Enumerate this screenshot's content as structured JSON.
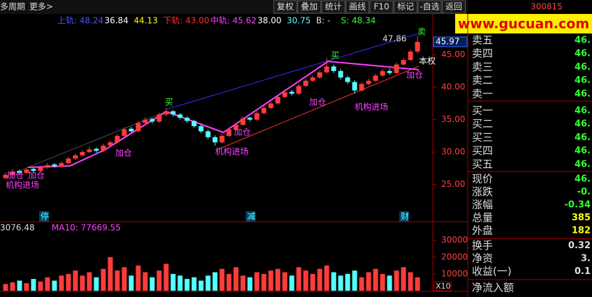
{
  "toolbar": {
    "left": [
      "多周期",
      "更多>"
    ],
    "buttons": [
      "复权",
      "叠加",
      "统计",
      "画线",
      "F10",
      "标记",
      "-自选",
      "返回"
    ]
  },
  "watermark": "www.gucuan.com",
  "stock_code": "300815",
  "indicator_line": [
    "上轨: 48.24",
    "36.84",
    "44.13",
    "下轨: 43.00",
    "中轨: 45.62",
    "38.00",
    "30.75",
    "B: -",
    "S: 48.34"
  ],
  "volume_line": [
    "3076.48",
    "MA10: 77669.55"
  ],
  "annotations": {
    "buy": "买",
    "sell": "卖",
    "add": "加仓",
    "inst": "机构进场",
    "high": "47.86",
    "right": "本权",
    "last": "45.97",
    "x10": "X10"
  },
  "bottom_marks": [
    "停",
    "减",
    "财"
  ],
  "price": {
    "ylim": [
      21.2,
      51.3
    ],
    "yticks": [
      {
        "value": 25,
        "label": "25.00"
      },
      {
        "value": 30,
        "label": "30.00"
      },
      {
        "value": 35,
        "label": "35.00"
      },
      {
        "value": 40,
        "label": "40.00"
      },
      {
        "value": 45,
        "label": "45.00"
      }
    ],
    "up_color": "#ff3c3c",
    "down_color": "#54ffff",
    "candles": [
      [
        26.0,
        26.9,
        25.8,
        26.5
      ],
      [
        26.5,
        27.4,
        26.3,
        27.0
      ],
      [
        27.1,
        27.3,
        26.5,
        26.8
      ],
      [
        26.8,
        27.6,
        26.6,
        27.3
      ],
      [
        27.4,
        27.6,
        26.9,
        27.1
      ],
      [
        27.1,
        27.9,
        26.9,
        27.6
      ],
      [
        27.6,
        28.3,
        27.4,
        28.0
      ],
      [
        28.1,
        28.3,
        27.6,
        27.8
      ],
      [
        27.8,
        28.6,
        27.6,
        28.3
      ],
      [
        28.3,
        29.3,
        28.1,
        29.0
      ],
      [
        29.0,
        29.8,
        28.8,
        29.5
      ],
      [
        29.5,
        30.3,
        29.3,
        30.0
      ],
      [
        30.0,
        30.8,
        29.8,
        30.4
      ],
      [
        30.5,
        30.7,
        29.9,
        30.2
      ],
      [
        30.2,
        31.3,
        30.0,
        31.0
      ],
      [
        31.0,
        31.8,
        30.8,
        31.5
      ],
      [
        31.5,
        32.8,
        31.3,
        32.5
      ],
      [
        32.5,
        33.8,
        32.3,
        33.5
      ],
      [
        33.6,
        33.9,
        33.0,
        33.2
      ],
      [
        33.2,
        34.8,
        33.0,
        34.5
      ],
      [
        34.5,
        35.4,
        34.2,
        35.0
      ],
      [
        35.1,
        35.3,
        34.4,
        34.7
      ],
      [
        34.7,
        36.1,
        34.5,
        35.8
      ],
      [
        35.8,
        36.8,
        35.5,
        36.3
      ],
      [
        36.3,
        36.5,
        35.5,
        35.8
      ],
      [
        35.8,
        36.0,
        35.0,
        35.3
      ],
      [
        35.3,
        35.5,
        34.5,
        34.8
      ],
      [
        34.8,
        35.0,
        33.7,
        34.0
      ],
      [
        34.0,
        34.3,
        32.9,
        33.2
      ],
      [
        33.2,
        33.5,
        32.0,
        32.3
      ],
      [
        32.3,
        32.6,
        31.0,
        31.5
      ],
      [
        31.5,
        32.8,
        31.3,
        32.5
      ],
      [
        32.5,
        33.8,
        32.3,
        33.5
      ],
      [
        33.5,
        34.5,
        33.3,
        34.2
      ],
      [
        34.2,
        35.5,
        34.0,
        35.2
      ],
      [
        35.3,
        35.5,
        34.7,
        35.0
      ],
      [
        35.0,
        36.3,
        34.8,
        36.0
      ],
      [
        36.0,
        37.1,
        35.8,
        36.8
      ],
      [
        36.8,
        37.8,
        36.6,
        37.5
      ],
      [
        37.5,
        38.8,
        37.3,
        38.5
      ],
      [
        38.5,
        39.5,
        38.3,
        39.2
      ],
      [
        39.3,
        39.6,
        38.7,
        39.0
      ],
      [
        39.0,
        40.5,
        38.8,
        40.2
      ],
      [
        40.2,
        41.3,
        40.0,
        41.0
      ],
      [
        41.0,
        41.8,
        40.8,
        41.5
      ],
      [
        41.5,
        42.6,
        41.3,
        42.3
      ],
      [
        42.3,
        44.5,
        42.1,
        43.2
      ],
      [
        43.2,
        43.5,
        42.2,
        42.5
      ],
      [
        42.5,
        42.8,
        41.2,
        41.5
      ],
      [
        41.5,
        41.8,
        40.5,
        40.8
      ],
      [
        40.8,
        41.1,
        39.0,
        39.5
      ],
      [
        39.5,
        40.8,
        39.3,
        40.5
      ],
      [
        40.5,
        41.3,
        40.3,
        41.0
      ],
      [
        41.0,
        42.1,
        40.8,
        41.8
      ],
      [
        41.8,
        42.8,
        41.6,
        42.5
      ],
      [
        42.5,
        42.9,
        41.9,
        42.2
      ],
      [
        42.2,
        43.8,
        42.0,
        43.5
      ],
      [
        43.5,
        44.5,
        43.3,
        44.2
      ],
      [
        44.2,
        45.8,
        44.0,
        45.5
      ],
      [
        45.5,
        47.9,
        45.2,
        47.0
      ]
    ]
  },
  "volume": {
    "ylim": [
      0,
      34000
    ],
    "yticks": [
      10000,
      20000,
      30000
    ],
    "values": [
      4000,
      5000,
      6000,
      4500,
      7000,
      5500,
      8000,
      6000,
      9000,
      10000,
      12000,
      9000,
      11000,
      8000,
      13000,
      20000,
      12000,
      14000,
      9000,
      15000,
      11000,
      8000,
      12000,
      16000,
      10000,
      9000,
      7000,
      8000,
      6000,
      9000,
      11000,
      13000,
      10000,
      14000,
      9000,
      8000,
      11000,
      10000,
      12000,
      13000,
      11000,
      9000,
      14000,
      12000,
      10000,
      13000,
      15000,
      11000,
      9000,
      10000,
      12000,
      8000,
      11000,
      13000,
      10000,
      9000,
      12000,
      14000,
      11000,
      8000
    ]
  },
  "quote_panel": {
    "book": [
      [
        "卖五",
        "46."
      ],
      [
        "卖四",
        "46."
      ],
      [
        "卖三",
        "46."
      ],
      [
        "卖二",
        "46."
      ],
      [
        "卖一",
        "46."
      ],
      [
        "买一",
        "46."
      ],
      [
        "买二",
        "46."
      ],
      [
        "买三",
        "46."
      ],
      [
        "买四",
        "46."
      ],
      [
        "买五",
        "46."
      ]
    ],
    "stats": [
      [
        "现价",
        "46."
      ],
      [
        "涨跌",
        "-0."
      ],
      [
        "涨幅",
        "-0.34"
      ],
      [
        "总量",
        "385"
      ],
      [
        "外盘",
        "182"
      ]
    ],
    "extra": [
      [
        "换手",
        "0.32"
      ],
      [
        "净资",
        "3."
      ],
      [
        "收益(一)",
        "0.1"
      ]
    ],
    "flow": "净流入额"
  }
}
